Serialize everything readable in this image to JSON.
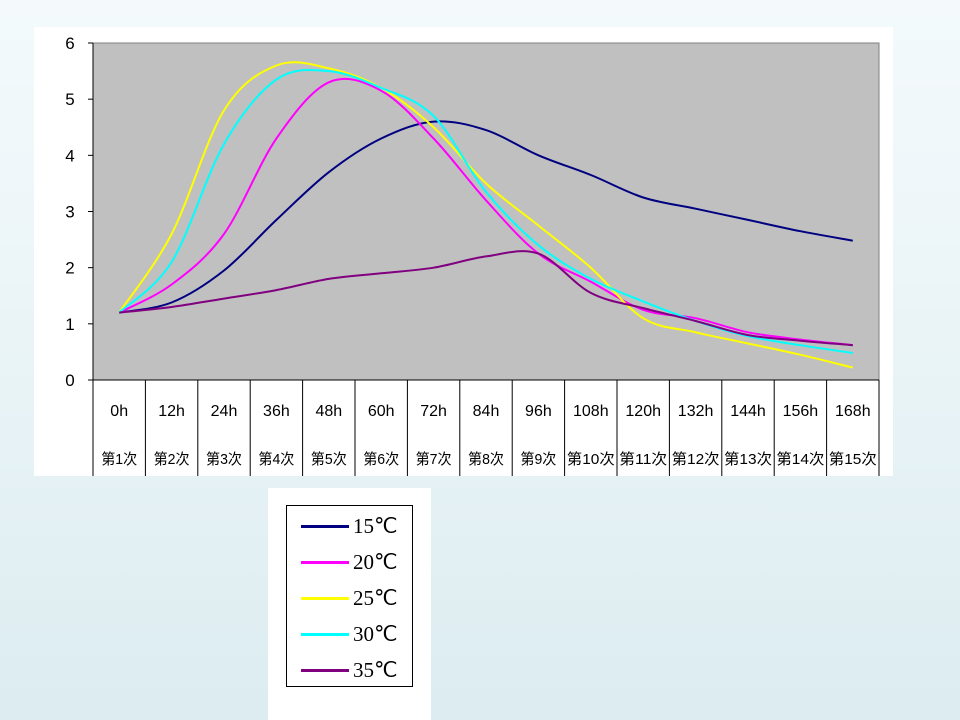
{
  "chart_data": {
    "type": "line",
    "title": "",
    "xlabel": "",
    "ylabel": "",
    "ylim": [
      0,
      6
    ],
    "yticks": [
      0,
      1,
      2,
      3,
      4,
      5,
      6
    ],
    "categories": [
      "0h",
      "12h",
      "24h",
      "36h",
      "48h",
      "60h",
      "72h",
      "84h",
      "96h",
      "108h",
      "120h",
      "132h",
      "144h",
      "156h",
      "168h"
    ],
    "sub_categories": [
      "第1次",
      "第2次",
      "第3次",
      "第4次",
      "第5次",
      "第6次",
      "第7次",
      "第8次",
      "第9次",
      "第10次",
      "第11次",
      "第12次",
      "第13次",
      "第14次",
      "第15次"
    ],
    "grid": false,
    "plot_background": "#c0c0c0",
    "legend_position": "below-left",
    "series": [
      {
        "name": "15℃",
        "color": "#000080",
        "values": [
          1.2,
          1.38,
          1.95,
          2.85,
          3.7,
          4.3,
          4.6,
          4.45,
          4.0,
          3.65,
          3.25,
          3.05,
          2.85,
          2.65,
          2.48
        ]
      },
      {
        "name": "20℃",
        "color": "#ff00ff",
        "values": [
          1.2,
          1.7,
          2.6,
          4.3,
          5.3,
          5.15,
          4.3,
          3.2,
          2.25,
          1.75,
          1.25,
          1.1,
          0.85,
          0.72,
          0.62
        ]
      },
      {
        "name": "25℃",
        "color": "#ffff00",
        "values": [
          1.2,
          2.6,
          4.8,
          5.6,
          5.55,
          5.2,
          4.5,
          3.5,
          2.75,
          2.0,
          1.1,
          0.85,
          0.65,
          0.45,
          0.22
        ]
      },
      {
        "name": "30℃",
        "color": "#00ffff",
        "values": [
          1.2,
          2.1,
          4.2,
          5.35,
          5.5,
          5.2,
          4.7,
          3.35,
          2.4,
          1.8,
          1.4,
          1.05,
          0.78,
          0.62,
          0.48
        ]
      },
      {
        "name": "35℃",
        "color": "#800080",
        "values": [
          1.2,
          1.3,
          1.45,
          1.6,
          1.8,
          1.9,
          2.0,
          2.2,
          2.25,
          1.55,
          1.28,
          1.05,
          0.8,
          0.7,
          0.62
        ]
      }
    ]
  }
}
